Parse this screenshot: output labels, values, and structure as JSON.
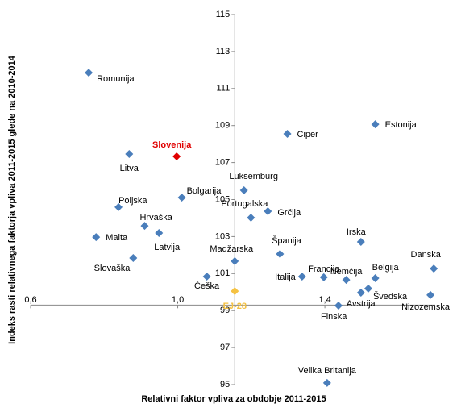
{
  "chart_data": {
    "type": "scatter",
    "x_label": "Relativni faktor vpliva za obdobje 2011-2015",
    "y_label": "Indeks rasti relativnega faktorja vpliva 2011-2015 glede na 2010-2014",
    "xlim": [
      0.6,
      1.7
    ],
    "ylim": [
      95,
      115
    ],
    "xticks": [
      {
        "value": 0.6,
        "label": "0,6"
      },
      {
        "value": 1.0,
        "label": "1,0"
      },
      {
        "value": 1.4,
        "label": "1,4"
      }
    ],
    "yticks": [
      95,
      97,
      99,
      101,
      103,
      105,
      107,
      109,
      111,
      113,
      115
    ],
    "x_axis_at": 99.3,
    "y_axis_at": 1.155,
    "color": "#4a7ebb",
    "points": [
      {
        "label": "Romunija",
        "x": 0.758,
        "y": 111.86
      },
      {
        "label": "Litva",
        "x": 0.868,
        "y": 107.46
      },
      {
        "label": "Slovenija",
        "x": 0.997,
        "y": 107.33,
        "color": "#e00000"
      },
      {
        "label": "Bolgarija",
        "x": 1.011,
        "y": 105.11
      },
      {
        "label": "Poljska",
        "x": 0.839,
        "y": 104.59
      },
      {
        "label": "Hrvaška",
        "x": 0.91,
        "y": 103.58
      },
      {
        "label": "Latvija",
        "x": 0.949,
        "y": 103.19
      },
      {
        "label": "Malta",
        "x": 0.778,
        "y": 102.97
      },
      {
        "label": "Slovaška",
        "x": 0.879,
        "y": 101.84
      },
      {
        "label": "Češka",
        "x": 1.079,
        "y": 100.84
      },
      {
        "label": "EJ-28",
        "x": 1.155,
        "y": 100.05,
        "color": "#f5c242"
      },
      {
        "label": "Luksemburg",
        "x": 1.18,
        "y": 105.5
      },
      {
        "label": "Portugalska",
        "x": 1.199,
        "y": 104.02
      },
      {
        "label": "Grčija",
        "x": 1.245,
        "y": 104.37
      },
      {
        "label": "Ciper",
        "x": 1.298,
        "y": 108.55
      },
      {
        "label": "Estonija",
        "x": 1.537,
        "y": 109.07
      },
      {
        "label": "Madžarska",
        "x": 1.155,
        "y": 101.67
      },
      {
        "label": "Španija",
        "x": 1.278,
        "y": 102.06
      },
      {
        "label": "Italija",
        "x": 1.338,
        "y": 100.84
      },
      {
        "label": "Francija",
        "x": 1.397,
        "y": 100.8
      },
      {
        "label": "Nemčija",
        "x": 1.458,
        "y": 100.66
      },
      {
        "label": "Irska",
        "x": 1.498,
        "y": 102.71
      },
      {
        "label": "Belgija",
        "x": 1.537,
        "y": 100.75
      },
      {
        "label": "Danska",
        "x": 1.696,
        "y": 101.27
      },
      {
        "label": "Švedska",
        "x": 1.518,
        "y": 100.19
      },
      {
        "label": "Avstrija",
        "x": 1.498,
        "y": 99.97
      },
      {
        "label": "Nizozemska",
        "x": 1.687,
        "y": 99.84
      },
      {
        "label": "Finska",
        "x": 1.437,
        "y": 99.27
      },
      {
        "label": "Velika Britanija",
        "x": 1.406,
        "y": 95.09
      }
    ]
  }
}
